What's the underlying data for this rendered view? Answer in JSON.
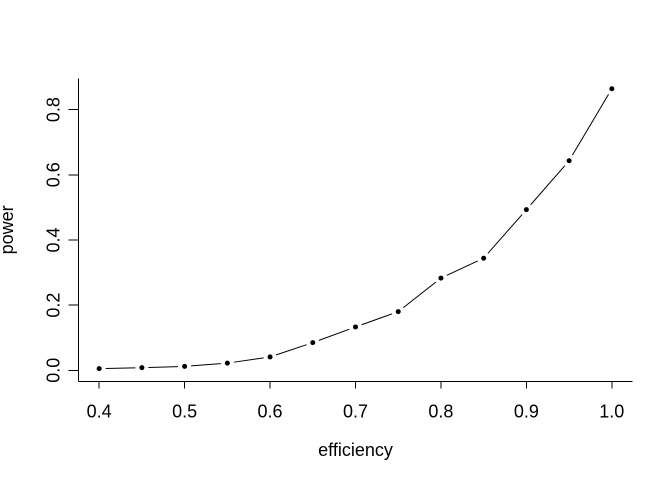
{
  "chart_data": {
    "type": "line",
    "r_plot_type": "b",
    "title": "",
    "xlabel": "efficiency",
    "ylabel": "power",
    "x": [
      0.4,
      0.45,
      0.5,
      0.55,
      0.6,
      0.65,
      0.7,
      0.75,
      0.8,
      0.85,
      0.9,
      0.95,
      1.0
    ],
    "y": [
      0.005,
      0.008,
      0.012,
      0.022,
      0.041,
      0.085,
      0.133,
      0.18,
      0.283,
      0.344,
      0.493,
      0.643,
      0.864
    ],
    "x_ticks": {
      "values": [
        0.4,
        0.5,
        0.6,
        0.7,
        0.8,
        0.9,
        1.0
      ],
      "labels": [
        "0.4",
        "0.5",
        "0.6",
        "0.7",
        "0.8",
        "0.9",
        "1.0"
      ]
    },
    "y_ticks": {
      "values": [
        0.0,
        0.2,
        0.4,
        0.6,
        0.8
      ],
      "labels": [
        "0.0",
        "0.2",
        "0.4",
        "0.6",
        "0.8"
      ]
    },
    "xlim": [
      0.3758,
      1.0242
    ],
    "ylim": [
      -0.0344,
      0.8961
    ],
    "grid": false,
    "legend": "none",
    "marker": "filled-circle",
    "line_style": "solid",
    "colors": {
      "foreground": "#000000",
      "background": "#ffffff"
    }
  }
}
